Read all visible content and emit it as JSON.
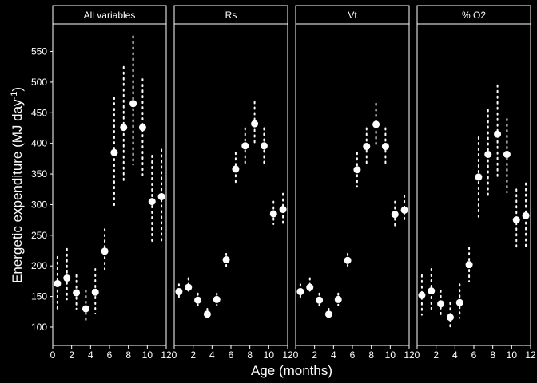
{
  "chart_data": {
    "type": "scatter",
    "xlabel": "Age (months)",
    "ylabel": "Energetic expenditure (MJ day",
    "ylabel_sup": "-1",
    "ylabel_close": ")",
    "xlim": [
      0,
      12
    ],
    "ylim": [
      70,
      595
    ],
    "x_ticks": [
      0,
      2,
      4,
      6,
      8,
      10,
      12
    ],
    "y_ticks": [
      100,
      150,
      200,
      250,
      300,
      350,
      400,
      450,
      500,
      550
    ],
    "grid": false,
    "panels": [
      {
        "name": "All variables",
        "x": [
          0.5,
          1.5,
          2.5,
          3.5,
          4.5,
          5.5,
          6.5,
          7.5,
          8.5,
          9.5,
          10.5,
          11.5
        ],
        "y": [
          171,
          180,
          156,
          130,
          157,
          224,
          385,
          426,
          465,
          426,
          305,
          313
        ],
        "lower": [
          130,
          145,
          130,
          108,
          122,
          190,
          295,
          335,
          365,
          345,
          240,
          240
        ],
        "upper": [
          215,
          228,
          185,
          160,
          195,
          260,
          475,
          525,
          575,
          505,
          380,
          390
        ]
      },
      {
        "name": "Rs",
        "x": [
          0.5,
          1.5,
          2.5,
          3.5,
          4.5,
          5.5,
          6.5,
          7.5,
          8.5,
          9.5,
          10.5,
          11.5
        ],
        "y": [
          158,
          165,
          144,
          121,
          145,
          210,
          358,
          396,
          432,
          396,
          285,
          292
        ],
        "lower": [
          148,
          155,
          135,
          113,
          136,
          200,
          332,
          368,
          398,
          368,
          268,
          270
        ],
        "upper": [
          170,
          180,
          155,
          130,
          155,
          220,
          385,
          425,
          468,
          425,
          305,
          318
        ]
      },
      {
        "name": "Vt",
        "x": [
          0.5,
          1.5,
          2.5,
          3.5,
          4.5,
          5.5,
          6.5,
          7.5,
          8.5,
          9.5,
          10.5,
          11.5
        ],
        "y": [
          158,
          165,
          144,
          121,
          145,
          209,
          357,
          395,
          431,
          395,
          284,
          291
        ],
        "lower": [
          148,
          155,
          135,
          113,
          136,
          200,
          330,
          368,
          398,
          368,
          265,
          270
        ],
        "upper": [
          170,
          180,
          155,
          130,
          155,
          220,
          385,
          425,
          465,
          425,
          305,
          315
        ]
      },
      {
        "name": "% O2",
        "x": [
          0.5,
          1.5,
          2.5,
          3.5,
          4.5,
          5.5,
          6.5,
          7.5,
          8.5,
          9.5,
          10.5,
          11.5
        ],
        "y": [
          152,
          159,
          138,
          116,
          140,
          202,
          345,
          382,
          415,
          382,
          275,
          282
        ],
        "lower": [
          120,
          130,
          115,
          98,
          115,
          175,
          280,
          315,
          345,
          320,
          230,
          230
        ],
        "upper": [
          185,
          195,
          160,
          140,
          170,
          230,
          410,
          455,
          495,
          440,
          325,
          335
        ]
      }
    ]
  }
}
